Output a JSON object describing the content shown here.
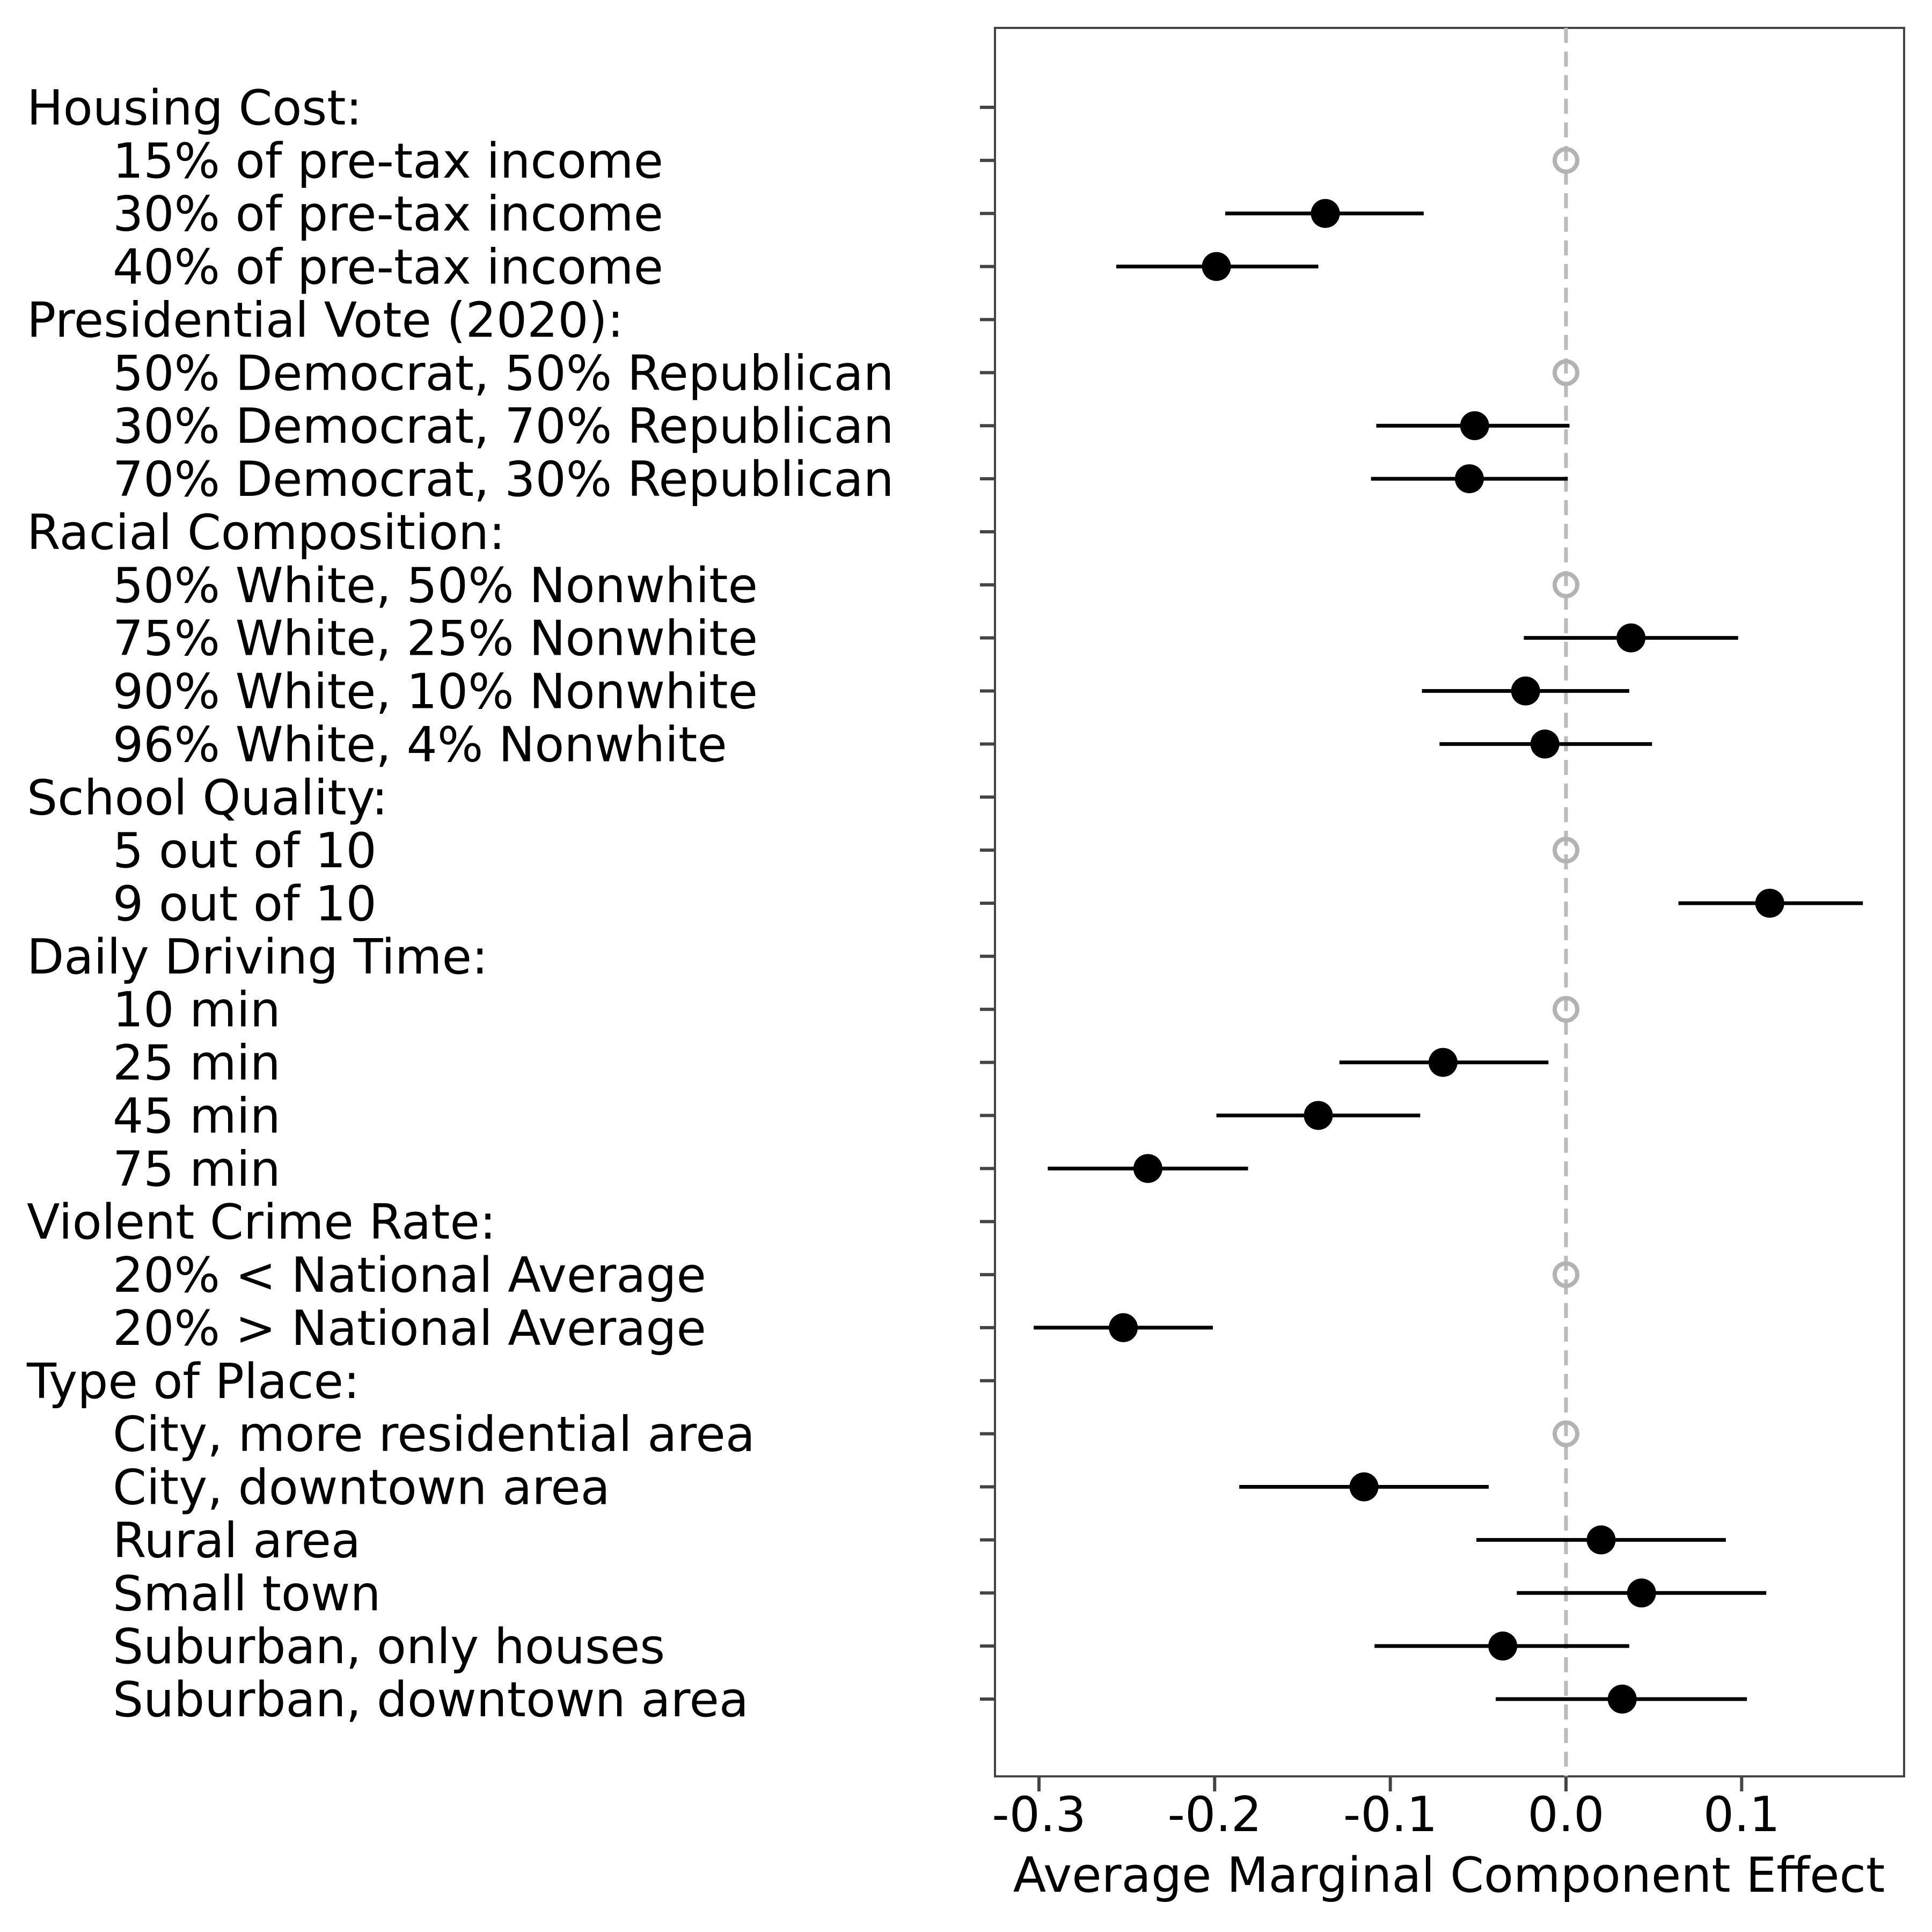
{
  "chart_data": {
    "type": "scatter",
    "subtype": "coefficient-plot-with-error-bars",
    "xlabel": "Average Marginal Component Effect",
    "ylabel": "",
    "xlim": [
      -0.32,
      0.19
    ],
    "xticks": [
      -0.3,
      -0.2,
      -0.1,
      0.0,
      0.1
    ],
    "xtick_labels": [
      "-0.3",
      "-0.2",
      "-0.1",
      "0.0",
      "0.1"
    ],
    "reference_line": {
      "x": 0.0,
      "style": "dashed",
      "color": "#bbbbbb"
    },
    "grid": false,
    "legend": "none",
    "colors": {
      "estimate": "#000000",
      "reference_level": "#b3b3b3"
    },
    "rows": [
      {
        "label": "Housing Cost:",
        "kind": "header"
      },
      {
        "label": "15% of pre-tax income",
        "kind": "reference",
        "estimate": 0.0
      },
      {
        "label": "30% of pre-tax income",
        "kind": "level",
        "estimate": -0.137,
        "ci_low": -0.194,
        "ci_high": -0.081
      },
      {
        "label": "40% of pre-tax income",
        "kind": "level",
        "estimate": -0.199,
        "ci_low": -0.256,
        "ci_high": -0.141
      },
      {
        "label": "Presidential Vote (2020):",
        "kind": "header"
      },
      {
        "label": "50% Democrat, 50% Republican",
        "kind": "reference",
        "estimate": 0.0
      },
      {
        "label": "30% Democrat, 70% Republican",
        "kind": "level",
        "estimate": -0.052,
        "ci_low": -0.108,
        "ci_high": 0.002
      },
      {
        "label": "70% Democrat, 30% Republican",
        "kind": "level",
        "estimate": -0.055,
        "ci_low": -0.111,
        "ci_high": 0.001
      },
      {
        "label": "Racial Composition:",
        "kind": "header"
      },
      {
        "label": "50% White, 50% Nonwhite",
        "kind": "reference",
        "estimate": 0.0
      },
      {
        "label": "75% White, 25% Nonwhite",
        "kind": "level",
        "estimate": 0.037,
        "ci_low": -0.024,
        "ci_high": 0.098
      },
      {
        "label": "90% White, 10% Nonwhite",
        "kind": "level",
        "estimate": -0.023,
        "ci_low": -0.082,
        "ci_high": 0.036
      },
      {
        "label": "96% White, 4% Nonwhite",
        "kind": "level",
        "estimate": -0.012,
        "ci_low": -0.072,
        "ci_high": 0.049
      },
      {
        "label": "School Quality:",
        "kind": "header"
      },
      {
        "label": "5 out of 10",
        "kind": "reference",
        "estimate": 0.0
      },
      {
        "label": "9 out of 10",
        "kind": "level",
        "estimate": 0.116,
        "ci_low": 0.064,
        "ci_high": 0.169
      },
      {
        "label": "Daily Driving Time:",
        "kind": "header"
      },
      {
        "label": "10 min",
        "kind": "reference",
        "estimate": 0.0
      },
      {
        "label": "25 min",
        "kind": "level",
        "estimate": -0.07,
        "ci_low": -0.129,
        "ci_high": -0.01
      },
      {
        "label": "45 min",
        "kind": "level",
        "estimate": -0.141,
        "ci_low": -0.199,
        "ci_high": -0.083
      },
      {
        "label": "75 min",
        "kind": "level",
        "estimate": -0.238,
        "ci_low": -0.295,
        "ci_high": -0.181
      },
      {
        "label": "Violent Crime Rate:",
        "kind": "header"
      },
      {
        "label": "20% < National Average",
        "kind": "reference",
        "estimate": 0.0
      },
      {
        "label": "20% > National Average",
        "kind": "level",
        "estimate": -0.252,
        "ci_low": -0.303,
        "ci_high": -0.201
      },
      {
        "label": "Type of Place:",
        "kind": "header"
      },
      {
        "label": "City, more residential area",
        "kind": "reference",
        "estimate": 0.0
      },
      {
        "label": "City, downtown area",
        "kind": "level",
        "estimate": -0.115,
        "ci_low": -0.186,
        "ci_high": -0.044
      },
      {
        "label": "Rural area",
        "kind": "level",
        "estimate": 0.02,
        "ci_low": -0.051,
        "ci_high": 0.091
      },
      {
        "label": "Small town",
        "kind": "level",
        "estimate": 0.043,
        "ci_low": -0.028,
        "ci_high": 0.114
      },
      {
        "label": "Suburban, only houses",
        "kind": "level",
        "estimate": -0.036,
        "ci_low": -0.109,
        "ci_high": 0.036
      },
      {
        "label": "Suburban, downtown area",
        "kind": "level",
        "estimate": 0.032,
        "ci_low": -0.04,
        "ci_high": 0.103
      }
    ]
  }
}
